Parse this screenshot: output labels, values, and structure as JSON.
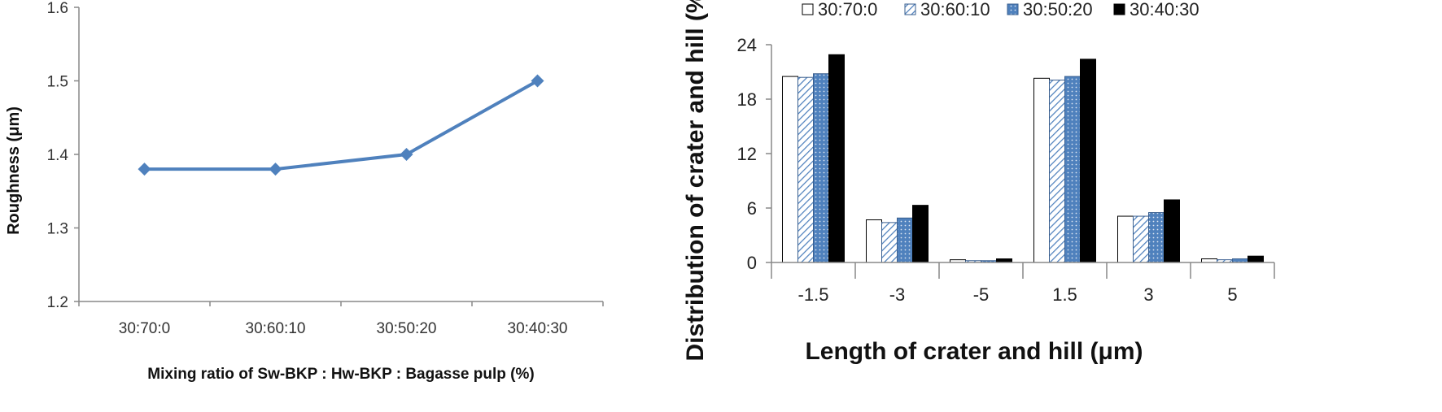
{
  "chart_data": [
    {
      "type": "line",
      "title": "",
      "xlabel": "Mixing ratio of Sw-BKP : Hw-BKP : Bagasse  pulp (%)",
      "ylabel": "Roughness (μm)",
      "categories": [
        "30:70:0",
        "30:60:10",
        "30:50:20",
        "30:40:30"
      ],
      "series": [
        {
          "values": [
            1.38,
            1.38,
            1.4,
            1.5
          ],
          "color": "#4f81bd",
          "marker": "diamond"
        }
      ],
      "ylim": [
        1.2,
        1.6
      ],
      "yticks": [
        "1.2",
        "1.3",
        "1.4",
        "1.5",
        "1.6"
      ],
      "grid": false,
      "legend": "none"
    },
    {
      "type": "bar",
      "title": "",
      "xlabel": "Length of crater and hill (μm)",
      "ylabel": "Distribution of crater and hill (%)",
      "categories": [
        "-1.5",
        "-3",
        "-5",
        "1.5",
        "3",
        "5"
      ],
      "series": [
        {
          "name": "30:70:0",
          "fill": "white",
          "values": [
            20.5,
            4.7,
            0.3,
            20.3,
            5.1,
            0.4
          ]
        },
        {
          "name": "30:60:10",
          "fill": "hatched",
          "values": [
            20.4,
            4.4,
            0.2,
            20.1,
            5.1,
            0.3
          ]
        },
        {
          "name": "30:50:20",
          "fill": "dotted",
          "values": [
            20.8,
            4.9,
            0.2,
            20.5,
            5.5,
            0.4
          ]
        },
        {
          "name": "30:40:30",
          "fill": "black",
          "values": [
            22.9,
            6.3,
            0.4,
            22.4,
            6.9,
            0.7
          ]
        }
      ],
      "ylim": [
        0,
        24
      ],
      "yticks": [
        "0",
        "6",
        "12",
        "18",
        "24"
      ],
      "grid": false,
      "legend": "top"
    }
  ]
}
